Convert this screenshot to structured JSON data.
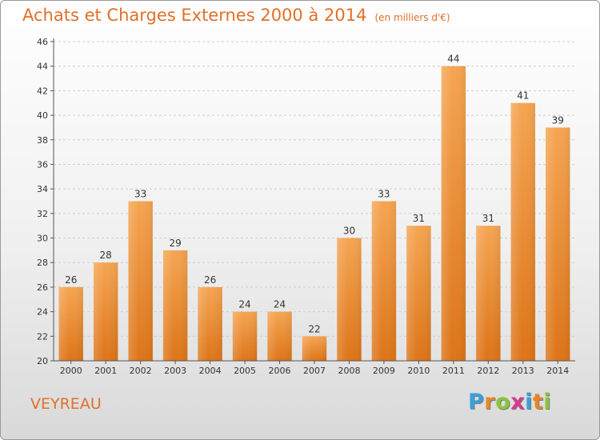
{
  "title": "Achats et Charges Externes 2000 à 2014",
  "subtitle": "(en milliers d'€)",
  "place": "VEYREAU",
  "logo": {
    "letters": [
      "P",
      "r",
      "o",
      "x",
      "i",
      "t",
      "i"
    ],
    "colors": [
      "#3aa0d8",
      "#e8862a",
      "#8cc43c",
      "#d93a8c",
      "#3aa0d8",
      "#e8862a",
      "#8cc43c"
    ]
  },
  "colors": {
    "bar_top": "#f5a552",
    "bar_bottom": "#dd7418",
    "text": "#e0702a"
  },
  "chart_data": {
    "type": "bar",
    "title": "Achats et Charges Externes 2000 à 2014",
    "subtitle": "(en milliers d'€)",
    "categories": [
      "2000",
      "2001",
      "2002",
      "2003",
      "2004",
      "2005",
      "2006",
      "2007",
      "2008",
      "2009",
      "2010",
      "2011",
      "2012",
      "2013",
      "2014"
    ],
    "values": [
      26,
      28,
      33,
      29,
      26,
      24,
      24,
      22,
      30,
      33,
      31,
      44,
      31,
      41,
      39
    ],
    "ylim": [
      20,
      46
    ],
    "yticks": [
      20,
      22,
      24,
      26,
      28,
      30,
      32,
      34,
      36,
      38,
      40,
      42,
      44,
      46
    ],
    "xlabel": "",
    "ylabel": "",
    "grid": true,
    "legend": "none"
  }
}
